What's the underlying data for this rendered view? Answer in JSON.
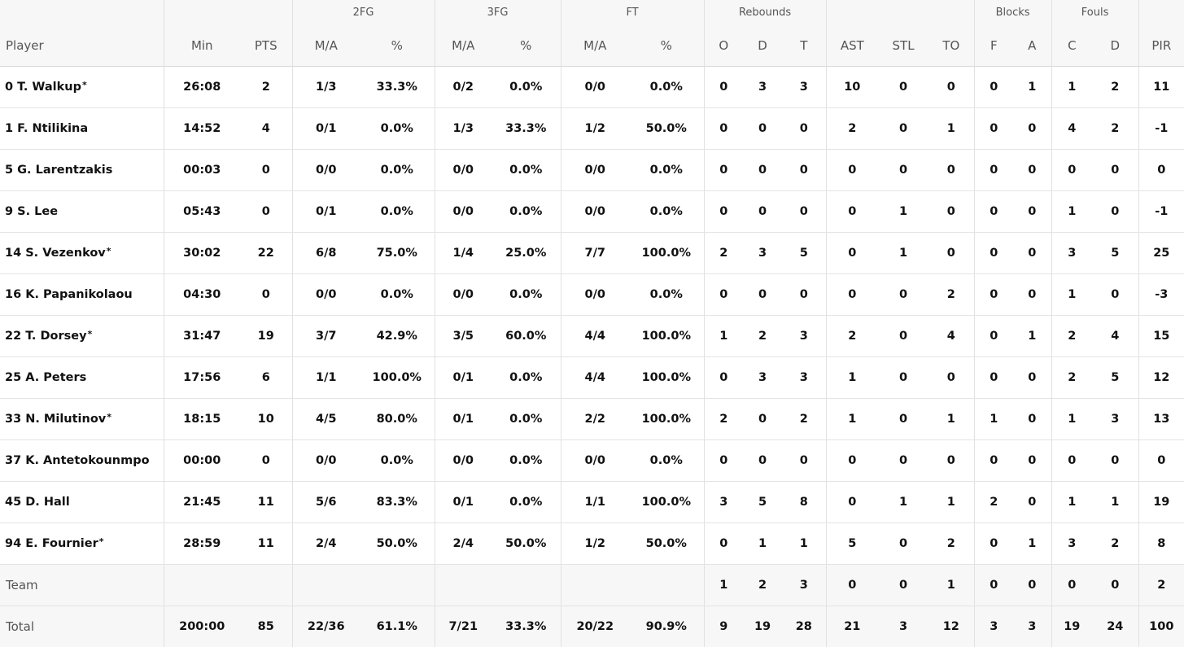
{
  "groups": {
    "fg2": "2FG",
    "fg3": "3FG",
    "ft": "FT",
    "reb": "Rebounds",
    "blk": "Blocks",
    "fouls": "Fouls"
  },
  "columns": {
    "player": "Player",
    "min": "Min",
    "pts": "PTS",
    "fg2_ma": "M/A",
    "fg2_pct": "%",
    "fg3_ma": "M/A",
    "fg3_pct": "%",
    "ft_ma": "M/A",
    "ft_pct": "%",
    "reb_o": "O",
    "reb_d": "D",
    "reb_t": "T",
    "ast": "AST",
    "stl": "STL",
    "to": "TO",
    "blk_f": "F",
    "blk_a": "A",
    "foul_c": "C",
    "foul_d": "D",
    "pir": "PIR"
  },
  "starter_mark": "*",
  "players": [
    {
      "name": "0 T. Walkup",
      "starter": true,
      "min": "26:08",
      "pts": "2",
      "fg2_ma": "1/3",
      "fg2_pct": "33.3%",
      "fg3_ma": "0/2",
      "fg3_pct": "0.0%",
      "ft_ma": "0/0",
      "ft_pct": "0.0%",
      "reb_o": "0",
      "reb_d": "3",
      "reb_t": "3",
      "ast": "10",
      "stl": "0",
      "to": "0",
      "blk_f": "0",
      "blk_a": "1",
      "foul_c": "1",
      "foul_d": "2",
      "pir": "11"
    },
    {
      "name": "1 F. Ntilikina",
      "starter": false,
      "min": "14:52",
      "pts": "4",
      "fg2_ma": "0/1",
      "fg2_pct": "0.0%",
      "fg3_ma": "1/3",
      "fg3_pct": "33.3%",
      "ft_ma": "1/2",
      "ft_pct": "50.0%",
      "reb_o": "0",
      "reb_d": "0",
      "reb_t": "0",
      "ast": "2",
      "stl": "0",
      "to": "1",
      "blk_f": "0",
      "blk_a": "0",
      "foul_c": "4",
      "foul_d": "2",
      "pir": "-1"
    },
    {
      "name": "5 G. Larentzakis",
      "starter": false,
      "min": "00:03",
      "pts": "0",
      "fg2_ma": "0/0",
      "fg2_pct": "0.0%",
      "fg3_ma": "0/0",
      "fg3_pct": "0.0%",
      "ft_ma": "0/0",
      "ft_pct": "0.0%",
      "reb_o": "0",
      "reb_d": "0",
      "reb_t": "0",
      "ast": "0",
      "stl": "0",
      "to": "0",
      "blk_f": "0",
      "blk_a": "0",
      "foul_c": "0",
      "foul_d": "0",
      "pir": "0"
    },
    {
      "name": "9 S. Lee",
      "starter": false,
      "min": "05:43",
      "pts": "0",
      "fg2_ma": "0/1",
      "fg2_pct": "0.0%",
      "fg3_ma": "0/0",
      "fg3_pct": "0.0%",
      "ft_ma": "0/0",
      "ft_pct": "0.0%",
      "reb_o": "0",
      "reb_d": "0",
      "reb_t": "0",
      "ast": "0",
      "stl": "1",
      "to": "0",
      "blk_f": "0",
      "blk_a": "0",
      "foul_c": "1",
      "foul_d": "0",
      "pir": "-1"
    },
    {
      "name": "14 S. Vezenkov",
      "starter": true,
      "min": "30:02",
      "pts": "22",
      "fg2_ma": "6/8",
      "fg2_pct": "75.0%",
      "fg3_ma": "1/4",
      "fg3_pct": "25.0%",
      "ft_ma": "7/7",
      "ft_pct": "100.0%",
      "reb_o": "2",
      "reb_d": "3",
      "reb_t": "5",
      "ast": "0",
      "stl": "1",
      "to": "0",
      "blk_f": "0",
      "blk_a": "0",
      "foul_c": "3",
      "foul_d": "5",
      "pir": "25"
    },
    {
      "name": "16 K. Papanikolaou",
      "starter": false,
      "min": "04:30",
      "pts": "0",
      "fg2_ma": "0/0",
      "fg2_pct": "0.0%",
      "fg3_ma": "0/0",
      "fg3_pct": "0.0%",
      "ft_ma": "0/0",
      "ft_pct": "0.0%",
      "reb_o": "0",
      "reb_d": "0",
      "reb_t": "0",
      "ast": "0",
      "stl": "0",
      "to": "2",
      "blk_f": "0",
      "blk_a": "0",
      "foul_c": "1",
      "foul_d": "0",
      "pir": "-3"
    },
    {
      "name": "22 T. Dorsey",
      "starter": true,
      "min": "31:47",
      "pts": "19",
      "fg2_ma": "3/7",
      "fg2_pct": "42.9%",
      "fg3_ma": "3/5",
      "fg3_pct": "60.0%",
      "ft_ma": "4/4",
      "ft_pct": "100.0%",
      "reb_o": "1",
      "reb_d": "2",
      "reb_t": "3",
      "ast": "2",
      "stl": "0",
      "to": "4",
      "blk_f": "0",
      "blk_a": "1",
      "foul_c": "2",
      "foul_d": "4",
      "pir": "15"
    },
    {
      "name": "25 A. Peters",
      "starter": false,
      "min": "17:56",
      "pts": "6",
      "fg2_ma": "1/1",
      "fg2_pct": "100.0%",
      "fg3_ma": "0/1",
      "fg3_pct": "0.0%",
      "ft_ma": "4/4",
      "ft_pct": "100.0%",
      "reb_o": "0",
      "reb_d": "3",
      "reb_t": "3",
      "ast": "1",
      "stl": "0",
      "to": "0",
      "blk_f": "0",
      "blk_a": "0",
      "foul_c": "2",
      "foul_d": "5",
      "pir": "12"
    },
    {
      "name": "33 N. Milutinov",
      "starter": true,
      "min": "18:15",
      "pts": "10",
      "fg2_ma": "4/5",
      "fg2_pct": "80.0%",
      "fg3_ma": "0/1",
      "fg3_pct": "0.0%",
      "ft_ma": "2/2",
      "ft_pct": "100.0%",
      "reb_o": "2",
      "reb_d": "0",
      "reb_t": "2",
      "ast": "1",
      "stl": "0",
      "to": "1",
      "blk_f": "1",
      "blk_a": "0",
      "foul_c": "1",
      "foul_d": "3",
      "pir": "13"
    },
    {
      "name": "37 K. Antetokounmpo",
      "starter": false,
      "min": "00:00",
      "pts": "0",
      "fg2_ma": "0/0",
      "fg2_pct": "0.0%",
      "fg3_ma": "0/0",
      "fg3_pct": "0.0%",
      "ft_ma": "0/0",
      "ft_pct": "0.0%",
      "reb_o": "0",
      "reb_d": "0",
      "reb_t": "0",
      "ast": "0",
      "stl": "0",
      "to": "0",
      "blk_f": "0",
      "blk_a": "0",
      "foul_c": "0",
      "foul_d": "0",
      "pir": "0"
    },
    {
      "name": "45 D. Hall",
      "starter": false,
      "min": "21:45",
      "pts": "11",
      "fg2_ma": "5/6",
      "fg2_pct": "83.3%",
      "fg3_ma": "0/1",
      "fg3_pct": "0.0%",
      "ft_ma": "1/1",
      "ft_pct": "100.0%",
      "reb_o": "3",
      "reb_d": "5",
      "reb_t": "8",
      "ast": "0",
      "stl": "1",
      "to": "1",
      "blk_f": "2",
      "blk_a": "0",
      "foul_c": "1",
      "foul_d": "1",
      "pir": "19"
    },
    {
      "name": "94 E. Fournier",
      "starter": true,
      "min": "28:59",
      "pts": "11",
      "fg2_ma": "2/4",
      "fg2_pct": "50.0%",
      "fg3_ma": "2/4",
      "fg3_pct": "50.0%",
      "ft_ma": "1/2",
      "ft_pct": "50.0%",
      "reb_o": "0",
      "reb_d": "1",
      "reb_t": "1",
      "ast": "5",
      "stl": "0",
      "to": "2",
      "blk_f": "0",
      "blk_a": "1",
      "foul_c": "3",
      "foul_d": "2",
      "pir": "8"
    }
  ],
  "team": {
    "name": "Team",
    "min": "",
    "pts": "",
    "fg2_ma": "",
    "fg2_pct": "",
    "fg3_ma": "",
    "fg3_pct": "",
    "ft_ma": "",
    "ft_pct": "",
    "reb_o": "1",
    "reb_d": "2",
    "reb_t": "3",
    "ast": "0",
    "stl": "0",
    "to": "1",
    "blk_f": "0",
    "blk_a": "0",
    "foul_c": "0",
    "foul_d": "0",
    "pir": "2"
  },
  "total": {
    "name": "Total",
    "min": "200:00",
    "pts": "85",
    "fg2_ma": "22/36",
    "fg2_pct": "61.1%",
    "fg3_ma": "7/21",
    "fg3_pct": "33.3%",
    "ft_ma": "20/22",
    "ft_pct": "90.9%",
    "reb_o": "9",
    "reb_d": "19",
    "reb_t": "28",
    "ast": "21",
    "stl": "3",
    "to": "12",
    "blk_f": "3",
    "blk_a": "3",
    "foul_c": "19",
    "foul_d": "24",
    "pir": "100"
  }
}
